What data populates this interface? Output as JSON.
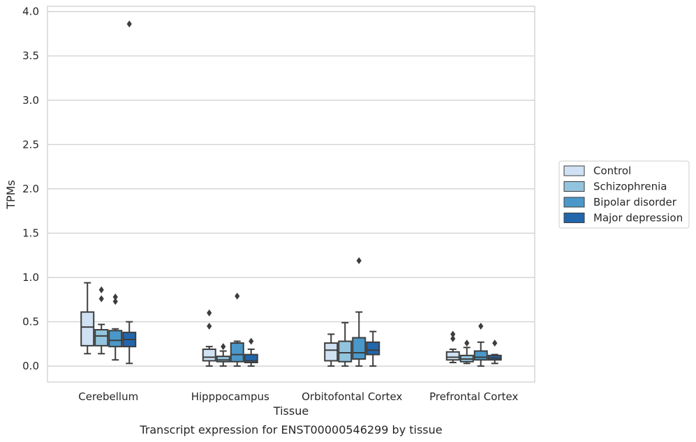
{
  "chart_data": {
    "type": "boxplot",
    "title": "",
    "caption": "Transcript expression for ENST00000546299 by tissue",
    "xlabel": "Tissue",
    "ylabel": "TPMs",
    "ylim": [
      -0.18,
      4.06
    ],
    "yticks": [
      "0.0",
      "0.5",
      "1.0",
      "1.5",
      "2.0",
      "2.5",
      "3.0",
      "3.5",
      "4.0"
    ],
    "grid": "horizontal",
    "legend_position": "right",
    "categories": [
      "Cerebellum",
      "Hipppocampus",
      "Orbitofontal Cortex",
      "Prefrontal Cortex"
    ],
    "series": [
      {
        "name": "Control",
        "color": "#cfe1f2",
        "boxes": [
          {
            "q1": 0.23,
            "median": 0.44,
            "q3": 0.61,
            "whislo": 0.14,
            "whishi": 0.94,
            "fliers": []
          },
          {
            "q1": 0.06,
            "median": 0.1,
            "q3": 0.19,
            "whislo": 0.0,
            "whishi": 0.22,
            "fliers": [
              0.45,
              0.6
            ]
          },
          {
            "q1": 0.06,
            "median": 0.18,
            "q3": 0.26,
            "whislo": 0.0,
            "whishi": 0.36,
            "fliers": []
          },
          {
            "q1": 0.07,
            "median": 0.1,
            "q3": 0.16,
            "whislo": 0.04,
            "whishi": 0.19,
            "fliers": [
              0.31,
              0.36
            ]
          }
        ]
      },
      {
        "name": "Schizophrenia",
        "color": "#93c4de",
        "boxes": [
          {
            "q1": 0.23,
            "median": 0.34,
            "q3": 0.41,
            "whislo": 0.14,
            "whishi": 0.47,
            "fliers": [
              0.76,
              0.86
            ]
          },
          {
            "q1": 0.05,
            "median": 0.07,
            "q3": 0.11,
            "whislo": 0.0,
            "whishi": 0.17,
            "fliers": [
              0.22
            ]
          },
          {
            "q1": 0.05,
            "median": 0.15,
            "q3": 0.28,
            "whislo": 0.0,
            "whishi": 0.49,
            "fliers": []
          },
          {
            "q1": 0.05,
            "median": 0.08,
            "q3": 0.12,
            "whislo": 0.03,
            "whishi": 0.21,
            "fliers": [
              0.26
            ]
          }
        ]
      },
      {
        "name": "Bipolar disorder",
        "color": "#4a98c9",
        "boxes": [
          {
            "q1": 0.22,
            "median": 0.29,
            "q3": 0.4,
            "whislo": 0.07,
            "whishi": 0.42,
            "fliers": [
              0.73,
              0.78
            ]
          },
          {
            "q1": 0.05,
            "median": 0.13,
            "q3": 0.26,
            "whislo": 0.0,
            "whishi": 0.28,
            "fliers": [
              0.79
            ]
          },
          {
            "q1": 0.08,
            "median": 0.15,
            "q3": 0.32,
            "whislo": 0.0,
            "whishi": 0.61,
            "fliers": [
              1.19
            ]
          },
          {
            "q1": 0.07,
            "median": 0.1,
            "q3": 0.17,
            "whislo": 0.0,
            "whishi": 0.27,
            "fliers": [
              0.45
            ]
          }
        ]
      },
      {
        "name": "Major depression",
        "color": "#2266ac",
        "boxes": [
          {
            "q1": 0.22,
            "median": 0.3,
            "q3": 0.38,
            "whislo": 0.03,
            "whishi": 0.5,
            "fliers": [
              3.86
            ]
          },
          {
            "q1": 0.04,
            "median": 0.06,
            "q3": 0.13,
            "whislo": 0.0,
            "whishi": 0.19,
            "fliers": [
              0.28
            ]
          },
          {
            "q1": 0.13,
            "median": 0.18,
            "q3": 0.27,
            "whislo": 0.0,
            "whishi": 0.39,
            "fliers": []
          },
          {
            "q1": 0.07,
            "median": 0.09,
            "q3": 0.12,
            "whislo": 0.03,
            "whishi": 0.13,
            "fliers": [
              0.26
            ]
          }
        ]
      }
    ]
  }
}
